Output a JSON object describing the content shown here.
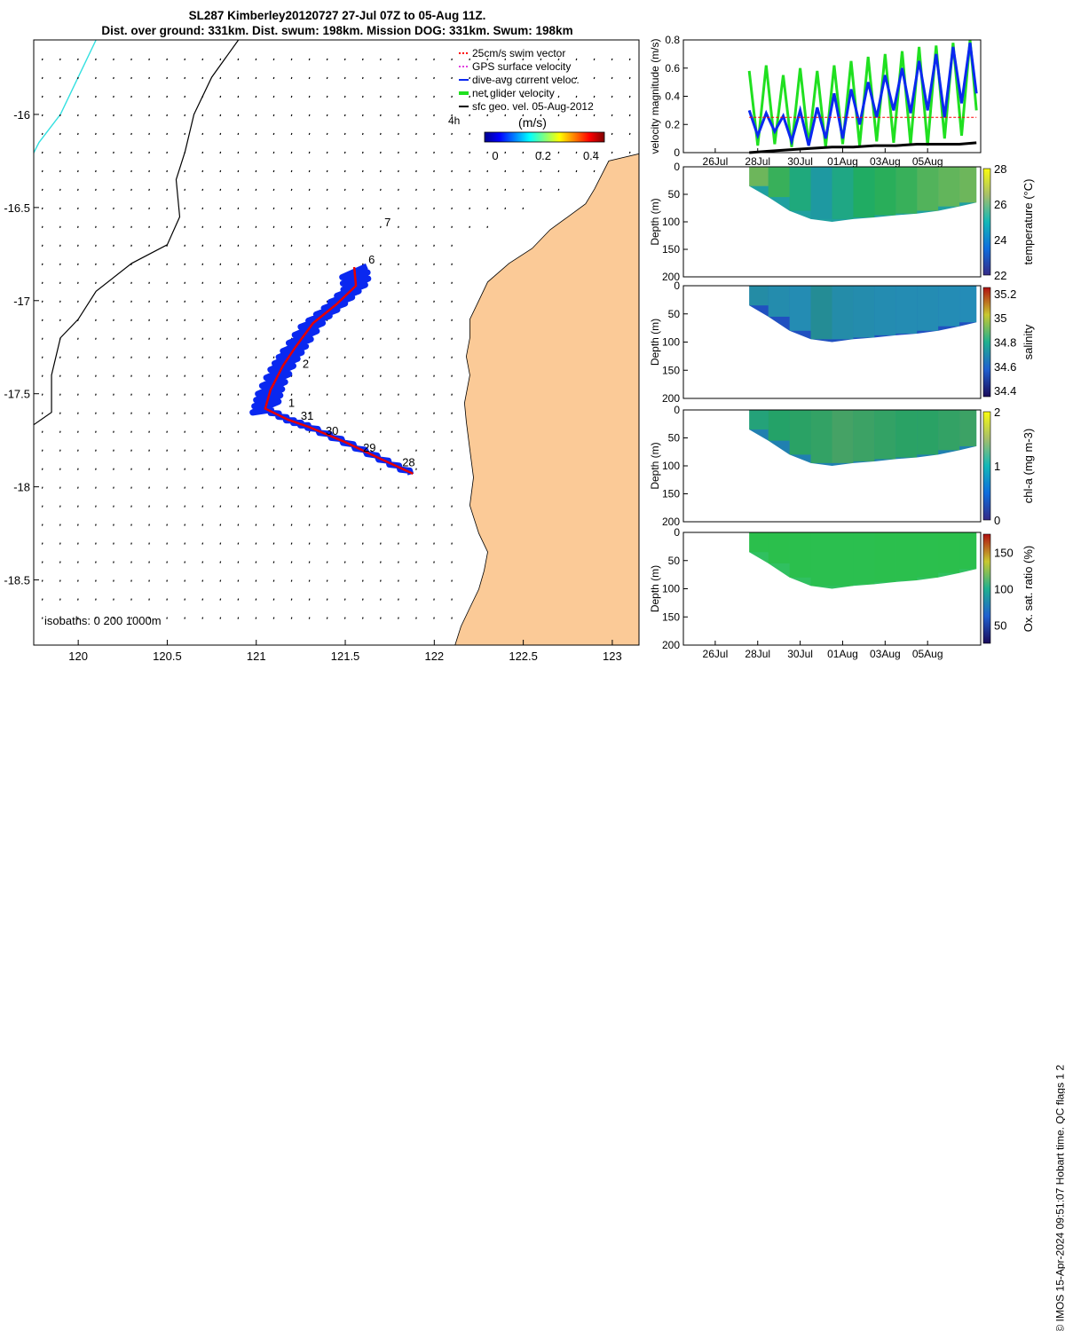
{
  "header": {
    "title_line1": "SL287 Kimberley20120727 27-Jul 07Z to 05-Aug 11Z.",
    "title_line2": "Dist. over ground: 331km. Dist. swum: 198km. Mission DOG: 331km. Swum: 198km"
  },
  "footer": {
    "text": "© IMOS 15-Apr-2024 09:51:07 Hobart time. QC flags 1  2"
  },
  "colors": {
    "land": "#fbca97",
    "track_blue": "#0a28f0",
    "track_red": "#e60000",
    "swim_red": "#ff0000",
    "gps_magenta": "#e040e0",
    "net_green": "#20e020",
    "coast_cyan": "#20e0e0"
  },
  "chart_data": [
    {
      "type": "map",
      "name": "track-map",
      "xlim": [
        119.75,
        123.15
      ],
      "ylim": [
        -18.85,
        -15.6
      ],
      "xticks": [
        120,
        120.5,
        121,
        121.5,
        122,
        122.5,
        123
      ],
      "xtick_labels": [
        "120",
        "120.5",
        "121",
        "121.5",
        "122",
        "122.5",
        "123"
      ],
      "yticks": [
        -16,
        -16.5,
        -17,
        -17.5,
        -18,
        -18.5
      ],
      "ytick_labels": [
        "-16",
        "-16.5",
        "-17",
        "-17.5",
        "-18",
        "-18.5"
      ],
      "legend": {
        "swim": "25cm/s swim vector",
        "gps": "GPS surface velocity",
        "dive": "dive-avg current veloc.",
        "net": "net glider velocity",
        "sfc": "sfc geo. vel. 05-Aug-2012",
        "hour_label": "4h"
      },
      "colorbar": {
        "label": "(m/s)",
        "ticks": [
          "0",
          "0.2",
          "0.4"
        ],
        "range": [
          0,
          0.5
        ]
      },
      "isobaths_label": "isobaths: 0   200  1000m",
      "day_labels": [
        {
          "text": "28",
          "lon": 121.82,
          "lat": -17.89
        },
        {
          "text": "29",
          "lon": 121.6,
          "lat": -17.81
        },
        {
          "text": "30",
          "lon": 121.39,
          "lat": -17.72
        },
        {
          "text": "31",
          "lon": 121.25,
          "lat": -17.64
        },
        {
          "text": "1",
          "lon": 121.18,
          "lat": -17.57
        },
        {
          "text": "2",
          "lon": 121.26,
          "lat": -17.36
        },
        {
          "text": "6",
          "lon": 121.63,
          "lat": -16.8
        },
        {
          "text": "7",
          "lon": 121.72,
          "lat": -16.6
        }
      ],
      "track_lonlat": [
        [
          121.88,
          -17.93
        ],
        [
          121.7,
          -17.85
        ],
        [
          121.5,
          -17.76
        ],
        [
          121.3,
          -17.68
        ],
        [
          121.18,
          -17.64
        ],
        [
          121.05,
          -17.58
        ],
        [
          121.08,
          -17.48
        ],
        [
          121.15,
          -17.35
        ],
        [
          121.22,
          -17.25
        ],
        [
          121.32,
          -17.12
        ],
        [
          121.45,
          -17.02
        ],
        [
          121.56,
          -16.92
        ],
        [
          121.55,
          -16.82
        ]
      ]
    },
    {
      "type": "line",
      "name": "velocity-panel",
      "ylabel": "velocity magnitude (m/s)",
      "ylim": [
        0,
        0.8
      ],
      "yticks": [
        0,
        0.2,
        0.4,
        0.6,
        0.8
      ],
      "ytick_labels": [
        "0",
        "0.2",
        "0.4",
        "0.6",
        "0.8"
      ],
      "xlim": [
        24.5,
        38.5
      ],
      "xticks": [
        26,
        28,
        30,
        32,
        34,
        36
      ],
      "xtick_labels": [
        "26Jul",
        "28Jul",
        "30Jul",
        "01Aug",
        "03Aug",
        "05Aug"
      ],
      "series": [
        {
          "name": "net glider velocity",
          "color": "#20e020",
          "x": [
            27.6,
            28.0,
            28.4,
            28.8,
            29.2,
            29.6,
            30.0,
            30.4,
            30.8,
            31.2,
            31.6,
            32.0,
            32.4,
            32.8,
            33.2,
            33.6,
            34.0,
            34.4,
            34.8,
            35.2,
            35.6,
            36.0,
            36.4,
            36.8,
            37.2,
            37.6,
            38.0,
            38.3
          ],
          "values": [
            0.58,
            0.05,
            0.62,
            0.06,
            0.55,
            0.04,
            0.6,
            0.05,
            0.58,
            0.04,
            0.62,
            0.06,
            0.65,
            0.05,
            0.68,
            0.08,
            0.7,
            0.07,
            0.72,
            0.06,
            0.75,
            0.05,
            0.76,
            0.1,
            0.78,
            0.12,
            0.8,
            0.3
          ]
        },
        {
          "name": "dive-avg current veloc.",
          "color": "#0a28f0",
          "x": [
            27.6,
            28.0,
            28.4,
            28.8,
            29.2,
            29.6,
            30.0,
            30.4,
            30.8,
            31.2,
            31.6,
            32.0,
            32.4,
            32.8,
            33.2,
            33.6,
            34.0,
            34.4,
            34.8,
            35.2,
            35.6,
            36.0,
            36.4,
            36.8,
            37.2,
            37.6,
            38.0,
            38.3
          ],
          "values": [
            0.3,
            0.12,
            0.28,
            0.15,
            0.26,
            0.08,
            0.3,
            0.05,
            0.32,
            0.1,
            0.42,
            0.1,
            0.45,
            0.2,
            0.5,
            0.25,
            0.55,
            0.3,
            0.6,
            0.28,
            0.65,
            0.3,
            0.7,
            0.25,
            0.75,
            0.35,
            0.78,
            0.42
          ]
        },
        {
          "name": "25cm/s swim vector",
          "color": "#ff0000",
          "x": [
            27.6,
            38.3
          ],
          "values": [
            0.25,
            0.25
          ]
        },
        {
          "name": "sfc geo. vel.",
          "color": "#000000",
          "x": [
            27.6,
            28.5,
            29.5,
            30.5,
            31.5,
            32.5,
            33.5,
            34.5,
            35.5,
            36.5,
            37.5,
            38.3
          ],
          "values": [
            0.0,
            0.01,
            0.02,
            0.03,
            0.04,
            0.04,
            0.05,
            0.05,
            0.06,
            0.06,
            0.06,
            0.07
          ]
        }
      ]
    },
    {
      "type": "heatmap",
      "name": "temperature-panel",
      "ylabel": "Depth (m)",
      "ylim": [
        0,
        200
      ],
      "yticks": [
        0,
        50,
        100,
        150,
        200
      ],
      "ytick_labels": [
        "0",
        "50",
        "100",
        "150",
        "200"
      ],
      "xlim": [
        24.5,
        38.5
      ],
      "colorbar": {
        "label": "temperature (°C)",
        "range": [
          22,
          28
        ],
        "ticks": [
          "22",
          "24",
          "26",
          "28"
        ]
      },
      "section_x": [
        27.6,
        28.5,
        29.5,
        30.5,
        31.5,
        32.5,
        33.5,
        34.5,
        35.5,
        36.5,
        37.5,
        38.3
      ],
      "section_depth": [
        35,
        55,
        80,
        95,
        100,
        95,
        92,
        88,
        85,
        80,
        72,
        65
      ],
      "values": [
        26.5,
        25.5,
        24.2,
        23.0,
        24.0,
        24.8,
        25.2,
        25.5,
        26.0,
        26.3,
        26.5,
        26.8
      ]
    },
    {
      "type": "heatmap",
      "name": "salinity-panel",
      "ylabel": "Depth (m)",
      "ylim": [
        0,
        200
      ],
      "yticks": [
        0,
        50,
        100,
        150,
        200
      ],
      "ytick_labels": [
        "0",
        "50",
        "100",
        "150",
        "200"
      ],
      "xlim": [
        24.5,
        38.5
      ],
      "colorbar": {
        "label": "salinity",
        "range": [
          34.35,
          35.25
        ],
        "ticks": [
          "34.4",
          "34.6",
          "34.8",
          "35",
          "35.2"
        ]
      },
      "section_x": [
        27.6,
        28.5,
        29.5,
        30.5,
        31.5,
        32.5,
        33.5,
        34.5,
        35.5,
        36.5,
        37.5,
        38.3
      ],
      "section_depth": [
        35,
        55,
        80,
        95,
        100,
        95,
        92,
        88,
        85,
        80,
        72,
        65
      ],
      "values": [
        34.62,
        34.58,
        34.55,
        34.7,
        34.6,
        34.58,
        34.56,
        34.55,
        34.55,
        34.54,
        34.53,
        34.52
      ]
    },
    {
      "type": "heatmap",
      "name": "chla-panel",
      "ylabel": "Depth (m)",
      "ylim": [
        0,
        200
      ],
      "yticks": [
        0,
        50,
        100,
        150,
        200
      ],
      "ytick_labels": [
        "0",
        "50",
        "100",
        "150",
        "200"
      ],
      "xlim": [
        24.5,
        38.5
      ],
      "colorbar": {
        "label": "chl-a (mg m-3)",
        "range": [
          0,
          2
        ],
        "ticks": [
          "0",
          "1",
          "2"
        ]
      },
      "section_x": [
        27.6,
        28.5,
        29.5,
        30.5,
        31.5,
        32.5,
        33.5,
        34.5,
        35.5,
        36.5,
        37.5,
        38.3
      ],
      "section_depth": [
        35,
        55,
        80,
        95,
        100,
        95,
        92,
        88,
        85,
        80,
        72,
        65
      ],
      "values": [
        1.0,
        1.2,
        1.3,
        1.4,
        1.6,
        1.5,
        1.4,
        1.3,
        1.3,
        1.4,
        1.5,
        1.2
      ]
    },
    {
      "type": "heatmap",
      "name": "oxygen-panel",
      "ylabel": "Depth (m)",
      "ylim": [
        0,
        200
      ],
      "yticks": [
        0,
        50,
        100,
        150,
        200
      ],
      "ytick_labels": [
        "0",
        "50",
        "100",
        "150",
        "200"
      ],
      "xlim": [
        24.5,
        38.5
      ],
      "xticks": [
        26,
        28,
        30,
        32,
        34,
        36
      ],
      "xtick_labels": [
        "26Jul",
        "28Jul",
        "30Jul",
        "01Aug",
        "03Aug",
        "05Aug"
      ],
      "colorbar": {
        "label": "Ox. sat. ratio (%)",
        "range": [
          25,
          175
        ],
        "ticks": [
          "50",
          "100",
          "150"
        ]
      },
      "section_x": [
        27.6,
        28.5,
        29.5,
        30.5,
        31.5,
        32.5,
        33.5,
        34.5,
        35.5,
        36.5,
        37.5,
        38.3
      ],
      "section_depth": [
        35,
        55,
        80,
        95,
        100,
        95,
        92,
        88,
        85,
        80,
        72,
        65
      ],
      "values": [
        108,
        108,
        107,
        106,
        106,
        106,
        107,
        107,
        107,
        108,
        108,
        108
      ]
    }
  ]
}
